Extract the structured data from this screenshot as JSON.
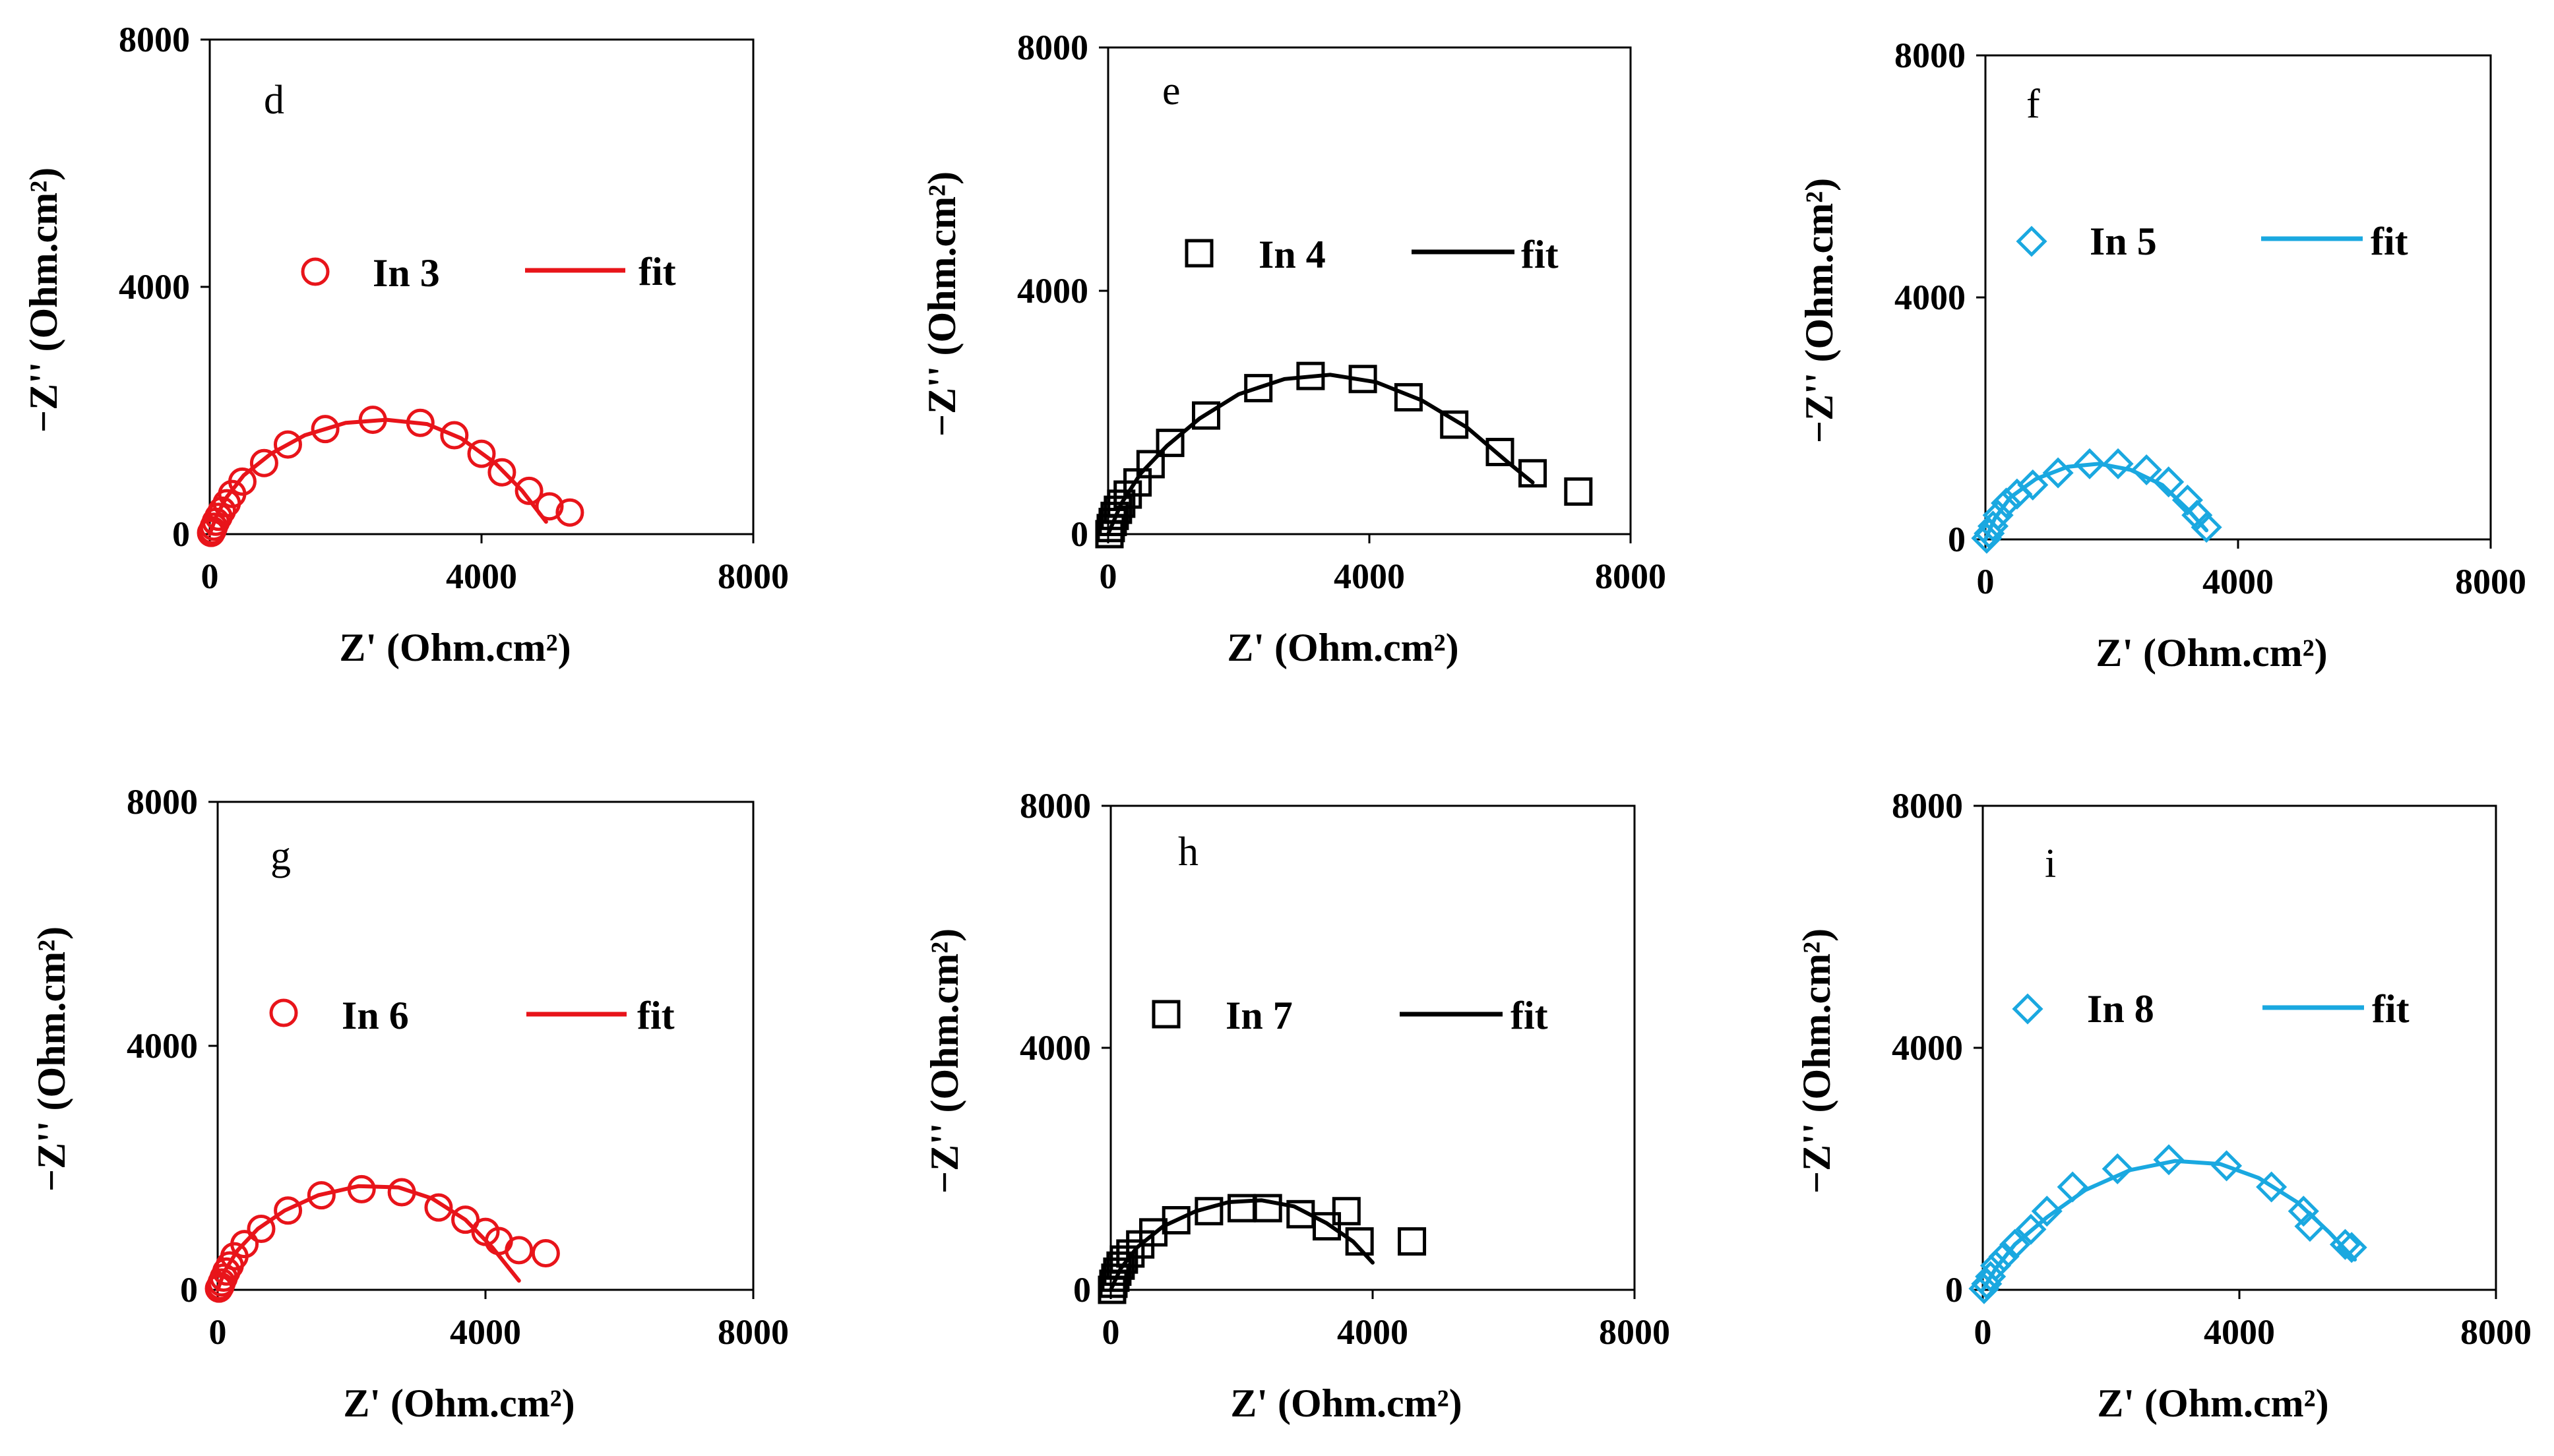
{
  "colors": {
    "red": "#e8141a",
    "black": "#000000",
    "blue": "#1aa8e0"
  },
  "axis_titles": {
    "x": "Z' (Ohm.cm²)",
    "y": "−Z'' (Ohm.cm²)"
  },
  "chart_data": [
    {
      "type": "scatter",
      "panel": "d",
      "xlim": [
        0,
        8000
      ],
      "ylim": [
        0,
        8000
      ],
      "xticks": [
        "0",
        "4000",
        "8000"
      ],
      "yticks": [
        "0",
        "4000",
        "8000"
      ],
      "color": "red",
      "marker": "circle",
      "legend": {
        "data": "In 3",
        "fit": "fit"
      },
      "series": [
        {
          "name": "In 3",
          "x": [
            20,
            40,
            60,
            90,
            130,
            180,
            250,
            330,
            480,
            800,
            1150,
            1700,
            2400,
            3100,
            3600,
            4000,
            4300,
            4700,
            5000,
            5300
          ],
          "y": [
            20,
            60,
            120,
            200,
            280,
            380,
            500,
            650,
            850,
            1150,
            1450,
            1700,
            1850,
            1800,
            1600,
            1300,
            1000,
            700,
            450,
            350
          ]
        },
        {
          "name": "fit",
          "x": [
            0,
            100,
            250,
            500,
            900,
            1400,
            2000,
            2600,
            3200,
            3700,
            4200,
            4600,
            4950
          ],
          "y": [
            0,
            300,
            600,
            950,
            1300,
            1600,
            1800,
            1850,
            1780,
            1550,
            1150,
            700,
            200
          ]
        }
      ]
    },
    {
      "type": "scatter",
      "panel": "e",
      "xlim": [
        0,
        8000
      ],
      "ylim": [
        0,
        8000
      ],
      "xticks": [
        "0",
        "4000",
        "8000"
      ],
      "yticks": [
        "0",
        "4000",
        "8000"
      ],
      "color": "black",
      "marker": "square",
      "legend": {
        "data": "In 4",
        "fit": "fit"
      },
      "series": [
        {
          "name": "In 4",
          "x": [
            20,
            40,
            70,
            100,
            150,
            200,
            300,
            450,
            650,
            950,
            1500,
            2300,
            3100,
            3900,
            4600,
            5300,
            6000,
            6500,
            7200
          ],
          "y": [
            0,
            100,
            200,
            300,
            400,
            500,
            650,
            850,
            1150,
            1500,
            1950,
            2400,
            2600,
            2550,
            2250,
            1800,
            1350,
            1000,
            700
          ]
        },
        {
          "name": "fit",
          "x": [
            0,
            200,
            500,
            900,
            1400,
            2000,
            2700,
            3400,
            4100,
            4800,
            5500,
            6100,
            6500
          ],
          "y": [
            0,
            500,
            1000,
            1450,
            1900,
            2300,
            2550,
            2620,
            2500,
            2200,
            1750,
            1200,
            850
          ]
        }
      ]
    },
    {
      "type": "scatter",
      "panel": "f",
      "xlim": [
        0,
        8000
      ],
      "ylim": [
        0,
        8000
      ],
      "xticks": [
        "0",
        "4000",
        "8000"
      ],
      "yticks": [
        "0",
        "4000",
        "8000"
      ],
      "color": "blue",
      "marker": "diamond",
      "legend": {
        "data": "In 5",
        "fit": "fit"
      },
      "series": [
        {
          "name": "In 5",
          "x": [
            20,
            60,
            120,
            200,
            330,
            500,
            750,
            1150,
            1650,
            2100,
            2550,
            2900,
            3200,
            3350,
            3500
          ],
          "y": [
            20,
            100,
            220,
            400,
            600,
            750,
            900,
            1100,
            1250,
            1250,
            1150,
            950,
            650,
            400,
            200
          ]
        },
        {
          "name": "fit",
          "x": [
            0,
            150,
            400,
            800,
            1300,
            1800,
            2300,
            2800,
            3200,
            3500
          ],
          "y": [
            0,
            350,
            700,
            1000,
            1200,
            1250,
            1150,
            900,
            500,
            150
          ]
        }
      ]
    },
    {
      "type": "scatter",
      "panel": "g",
      "xlim": [
        0,
        8000
      ],
      "ylim": [
        0,
        8000
      ],
      "xticks": [
        "0",
        "4000",
        "8000"
      ],
      "yticks": [
        "0",
        "4000",
        "8000"
      ],
      "color": "red",
      "marker": "circle",
      "legend": {
        "data": "In 6",
        "fit": "fit"
      },
      "series": [
        {
          "name": "In 6",
          "x": [
            20,
            40,
            60,
            90,
            130,
            180,
            250,
            400,
            650,
            1050,
            1550,
            2150,
            2750,
            3300,
            3700,
            4000,
            4200,
            4500,
            4900
          ],
          "y": [
            20,
            60,
            120,
            200,
            300,
            400,
            550,
            750,
            1000,
            1300,
            1550,
            1650,
            1600,
            1350,
            1150,
            950,
            800,
            650,
            600
          ]
        },
        {
          "name": "fit",
          "x": [
            0,
            100,
            300,
            600,
            1000,
            1500,
            2100,
            2700,
            3200,
            3700,
            4100,
            4500
          ],
          "y": [
            0,
            300,
            650,
            1000,
            1300,
            1550,
            1700,
            1680,
            1500,
            1150,
            700,
            150
          ]
        }
      ]
    },
    {
      "type": "scatter",
      "panel": "h",
      "xlim": [
        0,
        8000
      ],
      "ylim": [
        0,
        8000
      ],
      "xticks": [
        "0",
        "4000",
        "8000"
      ],
      "yticks": [
        "0",
        "4000",
        "8000"
      ],
      "color": "black",
      "marker": "square",
      "legend": {
        "data": "In 7",
        "fit": "fit"
      },
      "series": [
        {
          "name": "In 7",
          "x": [
            20,
            40,
            70,
            100,
            150,
            200,
            300,
            450,
            650,
            1000,
            1500,
            2000,
            2400,
            2900,
            3300,
            3600,
            3800,
            4600
          ],
          "y": [
            0,
            100,
            200,
            300,
            400,
            500,
            600,
            750,
            950,
            1150,
            1300,
            1350,
            1350,
            1250,
            1050,
            1300,
            800,
            800
          ]
        },
        {
          "name": "fit",
          "x": [
            0,
            150,
            400,
            800,
            1300,
            1800,
            2300,
            2800,
            3300,
            3700,
            4000
          ],
          "y": [
            0,
            350,
            700,
            1050,
            1300,
            1450,
            1480,
            1380,
            1100,
            800,
            450
          ]
        }
      ]
    },
    {
      "type": "scatter",
      "panel": "i",
      "xlim": [
        0,
        8000
      ],
      "ylim": [
        0,
        8000
      ],
      "xticks": [
        "0",
        "4000",
        "8000"
      ],
      "yticks": [
        "0",
        "4000",
        "8000"
      ],
      "color": "blue",
      "marker": "diamond",
      "legend": {
        "data": "In 8",
        "fit": "fit"
      },
      "series": [
        {
          "name": "In 8",
          "x": [
            20,
            60,
            120,
            200,
            330,
            500,
            750,
            1000,
            1400,
            2100,
            2900,
            3800,
            4500,
            5000,
            5100,
            5650,
            5750
          ],
          "y": [
            20,
            100,
            220,
            400,
            550,
            750,
            1000,
            1300,
            1700,
            2000,
            2150,
            2050,
            1700,
            1300,
            1050,
            750,
            700
          ]
        },
        {
          "name": "fit",
          "x": [
            0,
            200,
            500,
            1000,
            1600,
            2300,
            3000,
            3700,
            4300,
            4900,
            5400,
            5800
          ],
          "y": [
            0,
            350,
            750,
            1200,
            1650,
            1980,
            2130,
            2080,
            1850,
            1450,
            950,
            500
          ]
        }
      ]
    }
  ]
}
